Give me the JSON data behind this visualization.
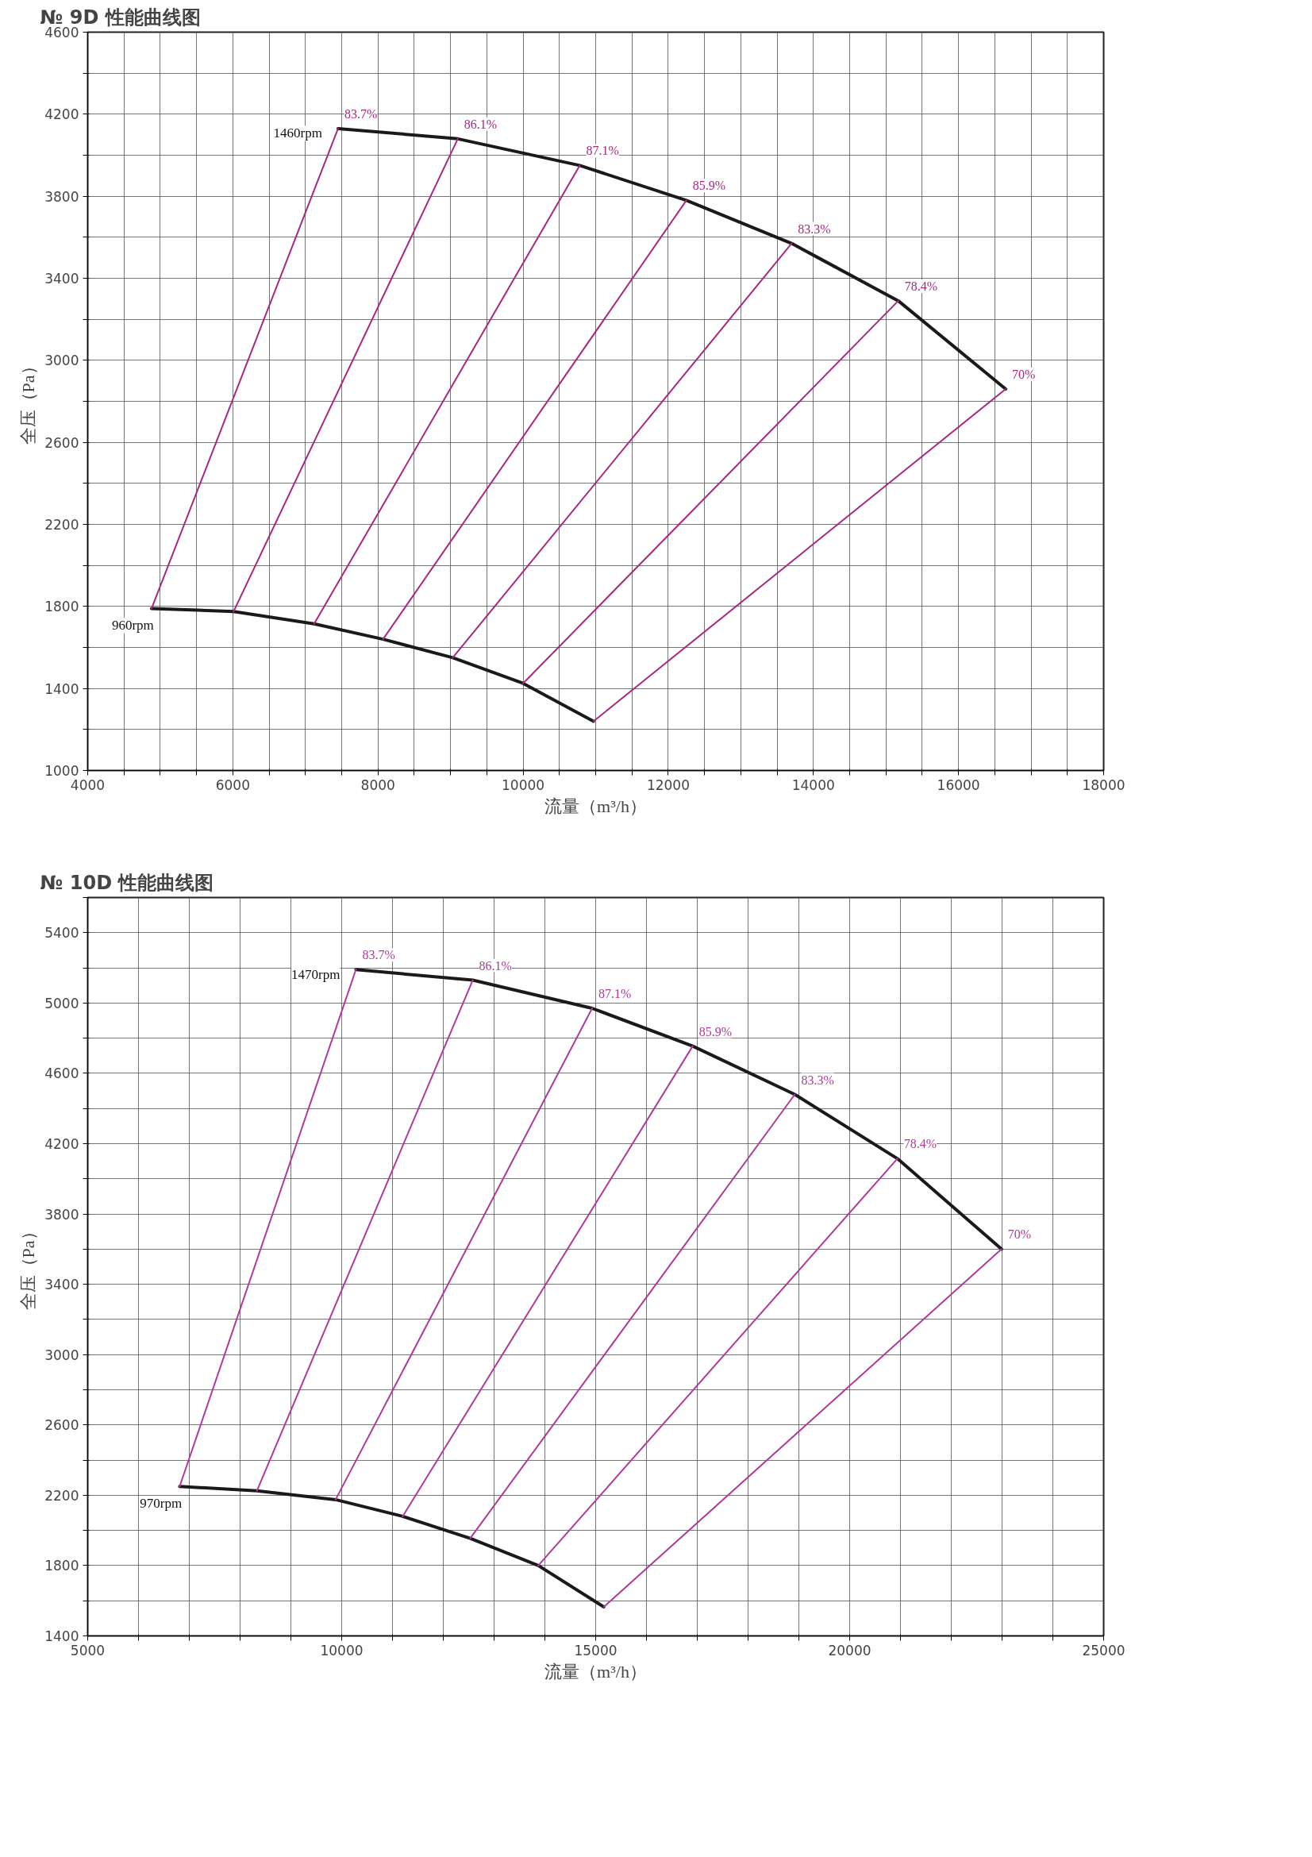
{
  "chart_data": [
    {
      "type": "line",
      "title": "№ 9D 性能曲线图",
      "xlabel": "流量（m³/h）",
      "ylabel": "全压（Pa）",
      "xlim": [
        4000,
        18000
      ],
      "ylim": [
        1000,
        4600
      ],
      "xticks": [
        4000,
        {
          "value": 4500,
          "label": null
        },
        {
          "value": 5000,
          "label": null
        },
        {
          "value": 5500,
          "label": null
        },
        6000,
        {
          "value": 6500,
          "label": null
        },
        {
          "value": 7000,
          "label": null
        },
        {
          "value": 7500,
          "label": null
        },
        8000,
        {
          "value": 8500,
          "label": null
        },
        {
          "value": 9000,
          "label": null
        },
        {
          "value": 9500,
          "label": null
        },
        10000,
        {
          "value": 10500,
          "label": null
        },
        {
          "value": 11000,
          "label": null
        },
        {
          "value": 11500,
          "label": null
        },
        12000,
        {
          "value": 12500,
          "label": null
        },
        {
          "value": 13000,
          "label": null
        },
        {
          "value": 13500,
          "label": null
        },
        14000,
        {
          "value": 14500,
          "label": null
        },
        {
          "value": 15000,
          "label": null
        },
        {
          "value": 15500,
          "label": null
        },
        16000,
        {
          "value": 16500,
          "label": null
        },
        {
          "value": 17000,
          "label": null
        },
        {
          "value": 17500,
          "label": null
        },
        18000
      ],
      "yticks": [
        1000,
        {
          "value": 1200,
          "label": null
        },
        1400,
        {
          "value": 1600,
          "label": null
        },
        1800,
        {
          "value": 2000,
          "label": null
        },
        2200,
        {
          "value": 2400,
          "label": null
        },
        2600,
        {
          "value": 2800,
          "label": null
        },
        3000,
        {
          "value": 3200,
          "label": null
        },
        3400,
        {
          "value": 3600,
          "label": null
        },
        3800,
        {
          "value": 4000,
          "label": null
        },
        4200,
        {
          "value": 4400,
          "label": null
        },
        4600
      ],
      "grid": true,
      "legend": false,
      "marker": "none",
      "line_style": "solid",
      "series": [
        {
          "name": "1460rpm",
          "color": "#1a1a1a",
          "x": [
            7450,
            9100,
            10780,
            12250,
            13700,
            15170,
            16650
          ],
          "values": [
            4130,
            4080,
            3950,
            3780,
            3570,
            3290,
            2860
          ]
        },
        {
          "name": "960rpm",
          "color": "#1a1a1a",
          "x": [
            4880,
            6010,
            7120,
            8070,
            9030,
            10000,
            10970
          ],
          "values": [
            1790,
            1775,
            1715,
            1640,
            1550,
            1425,
            1240
          ]
        },
        {
          "name": "83.7%",
          "color": "#a8287f",
          "x": [
            4880,
            7450
          ],
          "values": [
            1790,
            4130
          ]
        },
        {
          "name": "86.1%",
          "color": "#a8287f",
          "x": [
            6010,
            9100
          ],
          "values": [
            1775,
            4080
          ]
        },
        {
          "name": "87.1%",
          "color": "#a8287f",
          "x": [
            7120,
            10780
          ],
          "values": [
            1715,
            3950
          ]
        },
        {
          "name": "85.9%",
          "color": "#a8287f",
          "x": [
            8070,
            12250
          ],
          "values": [
            1640,
            3780
          ]
        },
        {
          "name": "83.3%",
          "color": "#a8287f",
          "x": [
            9030,
            13700
          ],
          "values": [
            1550,
            3570
          ]
        },
        {
          "name": "78.4%",
          "color": "#a8287f",
          "x": [
            10000,
            15170
          ],
          "values": [
            1425,
            3290
          ]
        },
        {
          "name": "70%",
          "color": "#a8287f",
          "x": [
            10970,
            16650
          ],
          "values": [
            1240,
            2860
          ]
        }
      ]
    },
    {
      "type": "line",
      "title": "№ 10D 性能曲线图",
      "xlabel": "流量（m³/h）",
      "ylabel": "全压（Pa）",
      "xlim": [
        5000,
        25000
      ],
      "ylim": [
        1400,
        5600
      ],
      "xticks": [
        5000,
        {
          "value": 6000,
          "label": null
        },
        {
          "value": 7000,
          "label": null
        },
        {
          "value": 8000,
          "label": null
        },
        {
          "value": 9000,
          "label": null
        },
        10000,
        {
          "value": 11000,
          "label": null
        },
        {
          "value": 12000,
          "label": null
        },
        {
          "value": 13000,
          "label": null
        },
        {
          "value": 14000,
          "label": null
        },
        15000,
        {
          "value": 16000,
          "label": null
        },
        {
          "value": 17000,
          "label": null
        },
        {
          "value": 18000,
          "label": null
        },
        {
          "value": 19000,
          "label": null
        },
        20000,
        {
          "value": 21000,
          "label": null
        },
        {
          "value": 22000,
          "label": null
        },
        {
          "value": 23000,
          "label": null
        },
        {
          "value": 24000,
          "label": null
        },
        25000
      ],
      "yticks": [
        1400,
        {
          "value": 1600,
          "label": null
        },
        1800,
        {
          "value": 2000,
          "label": null
        },
        2200,
        {
          "value": 2400,
          "label": null
        },
        2600,
        {
          "value": 2800,
          "label": null
        },
        3000,
        {
          "value": 3200,
          "label": null
        },
        3400,
        {
          "value": 3600,
          "label": null
        },
        3800,
        {
          "value": 4000,
          "label": null
        },
        4200,
        {
          "value": 4400,
          "label": null
        },
        4600,
        {
          "value": 4800,
          "label": null
        },
        5000,
        {
          "value": 5200,
          "label": null
        },
        5400,
        {
          "value": 5600,
          "label": null
        }
      ],
      "grid": true,
      "legend": false,
      "marker": "none",
      "line_style": "solid",
      "series": [
        {
          "name": "1470rpm",
          "color": "#1a1a1a",
          "x": [
            10280,
            12580,
            14930,
            16910,
            18920,
            20940,
            22990
          ],
          "values": [
            5190,
            5130,
            4970,
            4755,
            4480,
            4115,
            3600
          ]
        },
        {
          "name": "970rpm",
          "color": "#1a1a1a",
          "x": [
            6810,
            8330,
            9880,
            11200,
            12530,
            13870,
            15160
          ],
          "values": [
            2250,
            2225,
            2175,
            2080,
            1955,
            1800,
            1565
          ]
        },
        {
          "name": "83.7%",
          "color": "#b03a9a",
          "x": [
            6810,
            10280
          ],
          "values": [
            2250,
            5190
          ]
        },
        {
          "name": "86.1%",
          "color": "#b03a9a",
          "x": [
            8330,
            12580
          ],
          "values": [
            2225,
            5130
          ]
        },
        {
          "name": "87.1%",
          "color": "#b03a9a",
          "x": [
            9880,
            14930
          ],
          "values": [
            2175,
            4970
          ]
        },
        {
          "name": "85.9%",
          "color": "#b03a9a",
          "x": [
            11200,
            16910
          ],
          "values": [
            2080,
            4755
          ]
        },
        {
          "name": "83.3%",
          "color": "#b03a9a",
          "x": [
            12530,
            18920
          ],
          "values": [
            1955,
            4480
          ]
        },
        {
          "name": "78.4%",
          "color": "#b03a9a",
          "x": [
            13870,
            20940
          ],
          "values": [
            1800,
            4115
          ]
        },
        {
          "name": "70%",
          "color": "#b03a9a",
          "x": [
            15160,
            22990
          ],
          "values": [
            1565,
            3600
          ]
        }
      ]
    }
  ]
}
